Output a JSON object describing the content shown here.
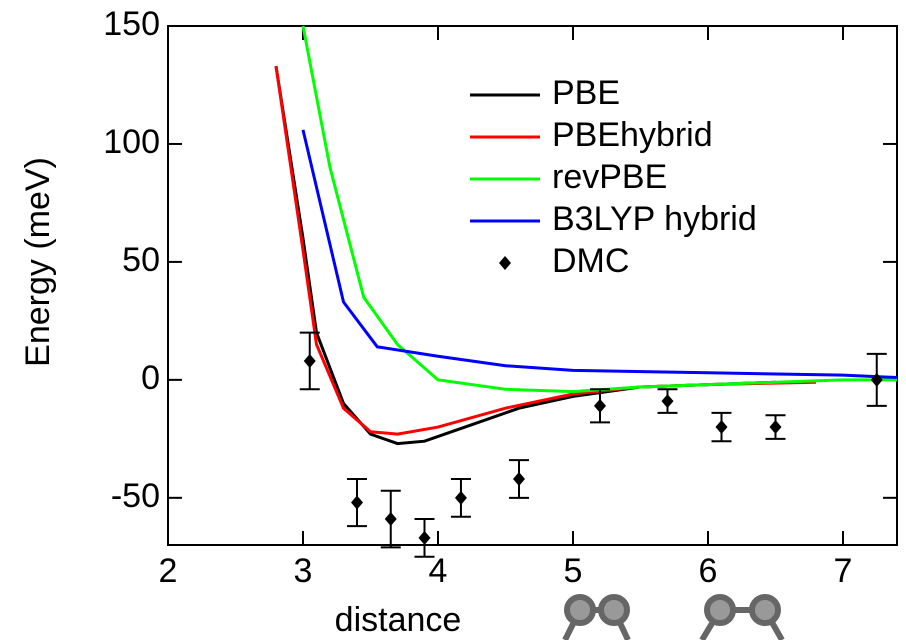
{
  "chart_data": {
    "type": "line",
    "xlabel": "distance",
    "ylabel": "Energy (meV)",
    "xlim": [
      2,
      7.4
    ],
    "ylim": [
      -70,
      150
    ],
    "xticks": [
      2,
      3,
      4,
      5,
      6,
      7
    ],
    "yticks": [
      -50,
      0,
      50,
      100,
      150
    ],
    "legend": "upper right",
    "series": [
      {
        "name": "PBE",
        "color": "#000000",
        "x": [
          2.8,
          3.0,
          3.1,
          3.3,
          3.5,
          3.7,
          3.9,
          4.2,
          4.6,
          5.0,
          5.5,
          6.0,
          6.5
        ],
        "values": [
          133,
          60,
          20,
          -10,
          -23,
          -27,
          -26,
          -20,
          -12,
          -7,
          -3,
          -2,
          -1
        ]
      },
      {
        "name": "PBEhybrid",
        "color": "#ff0000",
        "x": [
          2.8,
          3.0,
          3.1,
          3.3,
          3.5,
          3.7,
          4.0,
          4.5,
          5.0,
          5.5,
          6.0,
          6.8
        ],
        "values": [
          133,
          55,
          15,
          -12,
          -22,
          -23,
          -20,
          -12,
          -6,
          -3,
          -2,
          -1
        ]
      },
      {
        "name": "revPBE",
        "color": "#00ff00",
        "x": [
          3.0,
          3.2,
          3.45,
          3.7,
          4.0,
          4.5,
          5.0,
          5.5,
          6.0,
          7.0,
          7.4
        ],
        "values": [
          150,
          90,
          35,
          15,
          0,
          -4,
          -5,
          -3,
          -2,
          0,
          0
        ]
      },
      {
        "name": "B3LYP hybrid",
        "color": "#0000ff",
        "x": [
          3.0,
          3.3,
          3.55,
          4.0,
          4.5,
          5.0,
          6.0,
          7.0,
          7.4
        ],
        "values": [
          106,
          33,
          14,
          10,
          6,
          4,
          3,
          2,
          1
        ]
      },
      {
        "name": "DMC",
        "color": "#000000",
        "kind": "scatter",
        "x": [
          3.05,
          3.4,
          3.65,
          3.9,
          4.17,
          4.6,
          5.2,
          5.7,
          6.1,
          6.5,
          7.25
        ],
        "values": [
          8,
          -52,
          -59,
          -67,
          -50,
          -42,
          -11,
          -9,
          -20,
          -20,
          0
        ],
        "errors": [
          12,
          10,
          12,
          8,
          8,
          8,
          7,
          5,
          6,
          5,
          11
        ]
      }
    ]
  }
}
